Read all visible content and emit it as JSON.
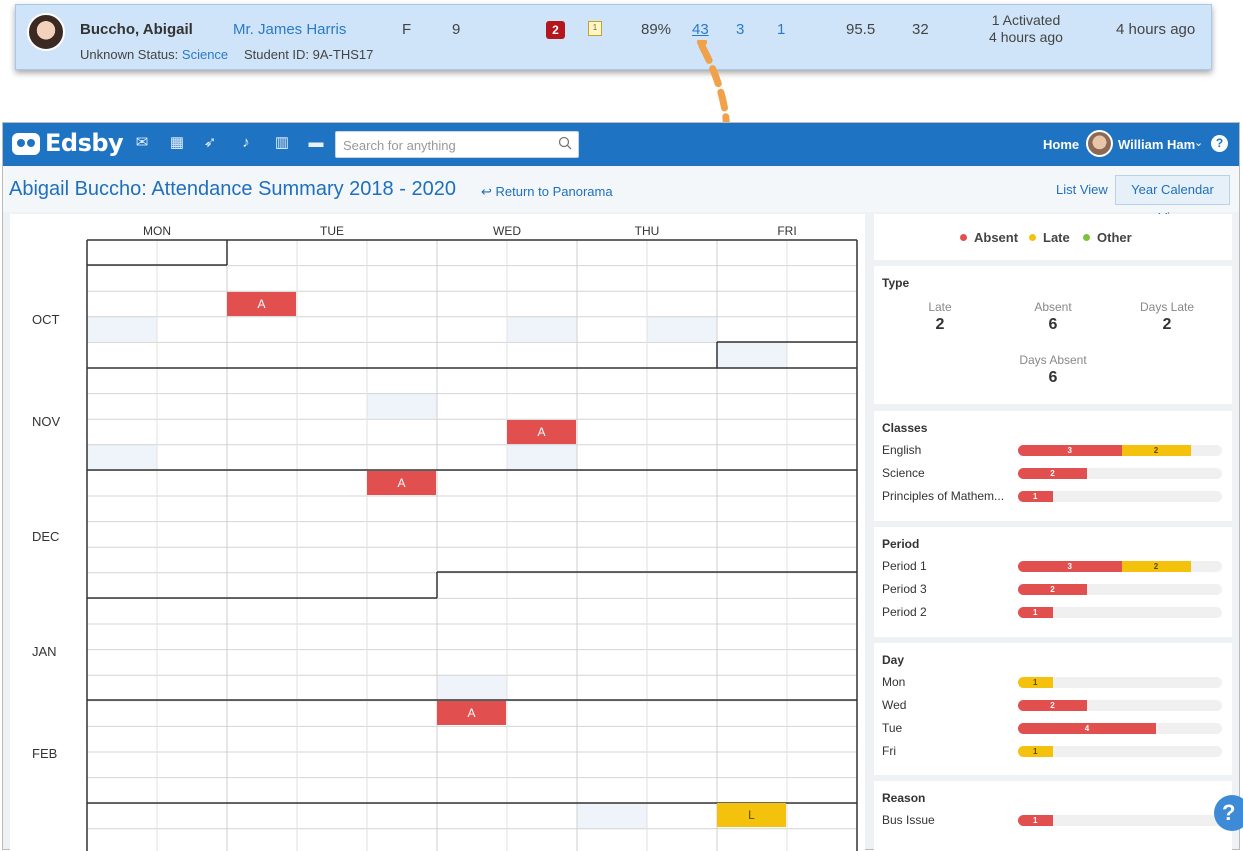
{
  "student_card": {
    "name": "Buccho, Abigail",
    "teacher": "Mr. James Harris",
    "gender": "F",
    "grade": "9",
    "alert_count": "2",
    "calendar_icon_label": "1",
    "percent": "89%",
    "attendance_link": "43",
    "count_a": "3",
    "count_b": "1",
    "score": "95.5",
    "score_b": "32",
    "activated_line1": "1 Activated",
    "activated_line2": "4 hours ago",
    "last_seen": "4 hours ago",
    "status_label": "Unknown Status:",
    "status_value": "Science",
    "student_id_label": "Student ID: 9A-THS17"
  },
  "navbar": {
    "logo": "Edsby",
    "search_placeholder": "Search for anything",
    "home": "Home",
    "user": "William Ham",
    "icons": [
      "mail-icon",
      "calendar-icon",
      "rocket-icon",
      "bell-icon",
      "chart-icon",
      "folder-icon"
    ]
  },
  "header": {
    "title": "Abigail Buccho: Attendance Summary 2018 - 2020",
    "return_link": "↩ Return to Panorama",
    "list_view": "List View",
    "year_calendar_view": "Year Calendar View"
  },
  "calendar": {
    "days": [
      "MON",
      "TUE",
      "WED",
      "THU",
      "FRI"
    ],
    "months": [
      "OCT",
      "NOV",
      "DEC",
      "JAN",
      "FEB"
    ],
    "marks": [
      {
        "label": "A",
        "type": "absent"
      },
      {
        "label": "A",
        "type": "absent"
      },
      {
        "label": "A",
        "type": "absent"
      },
      {
        "label": "A",
        "type": "absent"
      },
      {
        "label": "L",
        "type": "late"
      }
    ]
  },
  "legend": {
    "absent": "Absent",
    "late": "Late",
    "other": "Other",
    "colors": {
      "absent": "#e14f4f",
      "late": "#f4c20d",
      "other": "#7cc43a"
    }
  },
  "type_section": {
    "title": "Type",
    "stats": [
      {
        "label": "Late",
        "value": "2"
      },
      {
        "label": "Absent",
        "value": "6"
      },
      {
        "label": "Days Late",
        "value": "2"
      },
      {
        "label": "Days Absent",
        "value": "6"
      }
    ]
  },
  "classes_section": {
    "title": "Classes",
    "rows": [
      {
        "label": "English",
        "absent": 3,
        "late": 2
      },
      {
        "label": "Science",
        "absent": 2,
        "late": 0
      },
      {
        "label": "Principles of Mathem...",
        "absent": 1,
        "late": 0
      }
    ]
  },
  "period_section": {
    "title": "Period",
    "rows": [
      {
        "label": "Period 1",
        "absent": 3,
        "late": 2
      },
      {
        "label": "Period 3",
        "absent": 2,
        "late": 0
      },
      {
        "label": "Period 2",
        "absent": 1,
        "late": 0
      }
    ]
  },
  "day_section": {
    "title": "Day",
    "rows": [
      {
        "label": "Mon",
        "absent": 0,
        "late": 1
      },
      {
        "label": "Wed",
        "absent": 2,
        "late": 0
      },
      {
        "label": "Tue",
        "absent": 4,
        "late": 0
      },
      {
        "label": "Fri",
        "absent": 0,
        "late": 1
      }
    ]
  },
  "reason_section": {
    "title": "Reason",
    "rows": [
      {
        "label": "Bus Issue",
        "absent": 1,
        "late": 0
      }
    ]
  },
  "help_button": "?"
}
